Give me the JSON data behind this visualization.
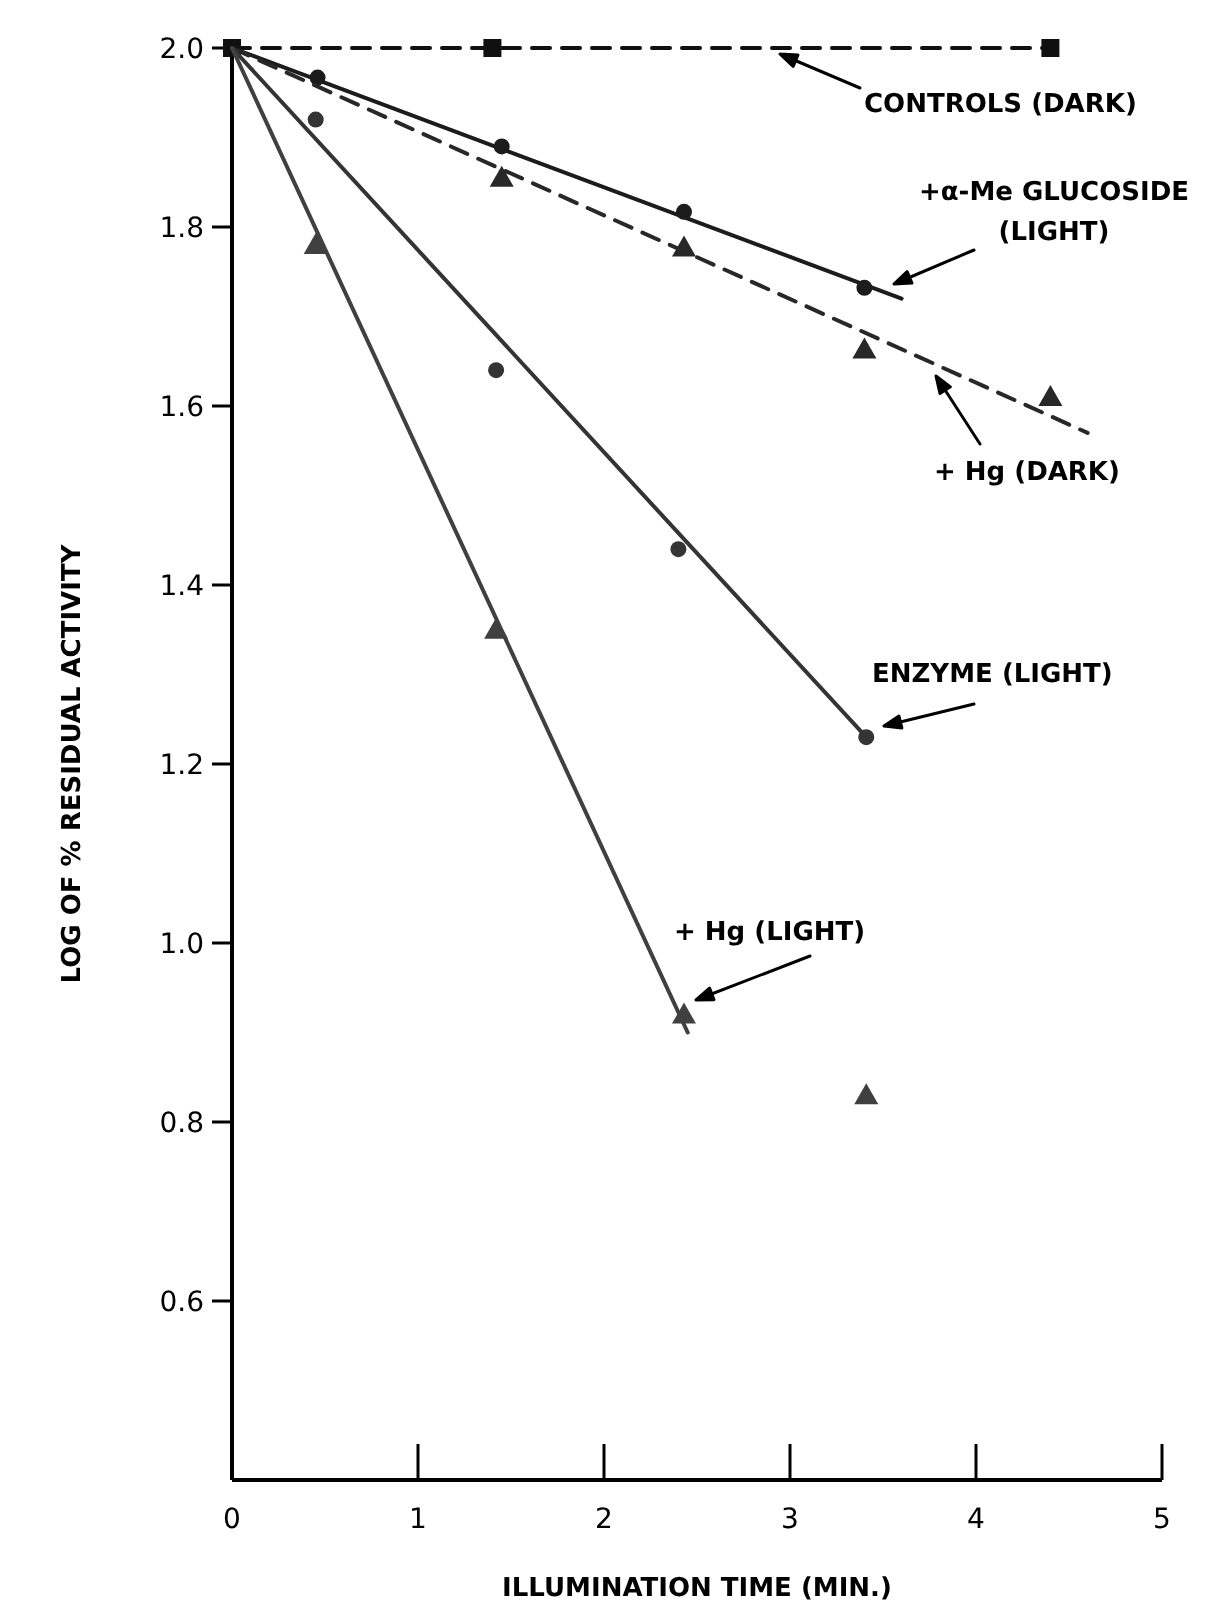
{
  "chart_data": {
    "type": "line",
    "xlabel": "ILLUMINATION TIME (MIN.)",
    "ylabel": "LOG OF % RESIDUAL ACTIVITY",
    "xlim": [
      0,
      5
    ],
    "ylim": [
      0.4,
      2.0
    ],
    "xticks": [
      0,
      1,
      2,
      3,
      4,
      5
    ],
    "yticks": [
      0.6,
      0.8,
      {
        "value": 1,
        "label": "1.0"
      },
      1.2,
      1.4,
      1.6,
      1.8,
      {
        "value": 2,
        "label": "2.0"
      }
    ],
    "series": [
      {
        "name": "CONTROLS (DARK)",
        "type": "scatter",
        "marker": "square",
        "color": "#101010",
        "x": [
          0,
          1.4,
          4.4
        ],
        "values": [
          2.0,
          2.0,
          2.0
        ]
      },
      {
        "line_style": "dashed",
        "marker": "none",
        "color": "#101010",
        "x": [
          0,
          4.4
        ],
        "values": [
          2.0,
          2.0
        ]
      },
      {
        "name": "+α-Me GLUCOSIDE\n(LIGHT)",
        "type": "scatter",
        "marker": "circle",
        "color": "#1c1c1c",
        "x": [
          0.46,
          1.45,
          2.43,
          3.4
        ],
        "values": [
          1.967,
          1.89,
          1.817,
          1.732
        ]
      },
      {
        "line_style": "solid",
        "marker": "none",
        "color": "#1c1c1c",
        "x": [
          0,
          3.6
        ],
        "values": [
          2.0,
          1.72
        ]
      },
      {
        "name": "+ Hg (DARK)",
        "type": "scatter",
        "marker": "triangle",
        "color": "#282828",
        "x": [
          1.45,
          2.43,
          3.4,
          4.4
        ],
        "values": [
          1.855,
          1.777,
          1.663,
          1.61
        ]
      },
      {
        "line_style": "dashed",
        "marker": "none",
        "color": "#282828",
        "x": [
          0,
          4.6
        ],
        "values": [
          2.0,
          1.57
        ]
      },
      {
        "name": "ENZYME (LIGHT)",
        "type": "scatter",
        "marker": "circle",
        "color": "#343434",
        "x": [
          0.45,
          1.42,
          2.4,
          3.41
        ],
        "values": [
          1.92,
          1.64,
          1.44,
          1.23
        ]
      },
      {
        "line_style": "solid",
        "marker": "none",
        "color": "#343434",
        "x": [
          0,
          3.41
        ],
        "values": [
          2.0,
          1.23
        ]
      },
      {
        "name": "+ Hg (LIGHT)",
        "type": "scatter",
        "marker": "triangle",
        "color": "#404040",
        "x": [
          0.45,
          1.42,
          2.43,
          3.41
        ],
        "values": [
          1.78,
          1.35,
          0.92,
          0.83
        ]
      },
      {
        "line_style": "solid",
        "marker": "none",
        "color": "#404040",
        "x": [
          0,
          2.45
        ],
        "values": [
          2.0,
          0.9
        ]
      }
    ]
  }
}
